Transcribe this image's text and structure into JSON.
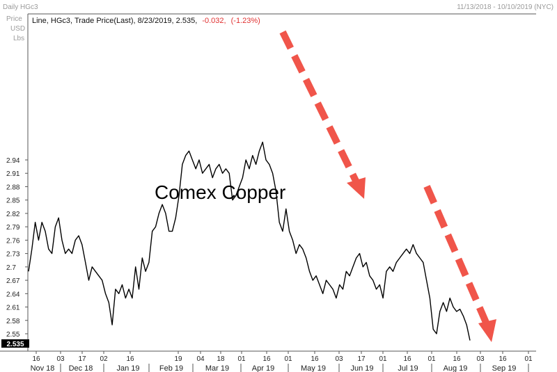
{
  "header": {
    "series_name": "Daily HGc3",
    "date_range": "11/13/2018 - 10/10/2019 (NYC)",
    "ylabel_lines": [
      "Price",
      "USD",
      "Lbs"
    ]
  },
  "legend": {
    "text": "Line, HGc3, Trade Price(Last), 8/23/2019, 2.535,",
    "change": "-0.032,",
    "change_pct": "(-1.23%)"
  },
  "last_price_label": "2.535",
  "annotation": "Comex Copper",
  "colors": {
    "line": "#000000",
    "arrow": "#f0554a",
    "price_tag_bg": "#000000",
    "price_tag_text": "#ffffff"
  },
  "chart_data": {
    "type": "line",
    "ylim": [
      2.52,
      2.98
    ],
    "yticks": [
      "2.55",
      "2.58",
      "2.61",
      "2.64",
      "2.67",
      "2.7",
      "2.73",
      "2.76",
      "2.79",
      "2.82",
      "2.85",
      "2.88",
      "2.91",
      "2.94"
    ],
    "day_ticks": [
      "16",
      "03",
      "17",
      "02",
      "16",
      "19",
      "04",
      "18",
      "01",
      "16",
      "01",
      "16",
      "03",
      "17",
      "01",
      "16",
      "01",
      "16",
      "03",
      "16",
      "01"
    ],
    "month_labels": [
      "Nov 18",
      "Dec 18",
      "Jan 19",
      "Feb 19",
      "Mar 19",
      "Apr 19",
      "May 19",
      "Jun 19",
      "Jul 19",
      "Aug 19",
      "Sep 19"
    ],
    "series": [
      {
        "values": [
          2.69,
          2.74,
          2.8,
          2.76,
          2.8,
          2.78,
          2.74,
          2.73,
          2.79,
          2.81,
          2.76,
          2.73,
          2.74,
          2.73,
          2.76,
          2.77,
          2.75,
          2.71,
          2.67,
          2.7,
          2.69,
          2.68,
          2.67,
          2.64,
          2.62,
          2.57,
          2.65,
          2.64,
          2.66,
          2.63,
          2.65,
          2.63,
          2.7,
          2.65,
          2.72,
          2.69,
          2.71,
          2.78,
          2.79,
          2.82,
          2.84,
          2.82,
          2.78,
          2.78,
          2.81,
          2.86,
          2.93,
          2.95,
          2.96,
          2.94,
          2.92,
          2.94,
          2.91,
          2.92,
          2.93,
          2.9,
          2.92,
          2.93,
          2.91,
          2.92,
          2.91,
          2.85,
          2.86,
          2.88,
          2.9,
          2.94,
          2.92,
          2.95,
          2.93,
          2.96,
          2.98,
          2.94,
          2.93,
          2.91,
          2.87,
          2.8,
          2.78,
          2.83,
          2.78,
          2.76,
          2.73,
          2.75,
          2.74,
          2.72,
          2.69,
          2.67,
          2.68,
          2.66,
          2.64,
          2.67,
          2.66,
          2.65,
          2.63,
          2.66,
          2.65,
          2.69,
          2.68,
          2.7,
          2.72,
          2.73,
          2.7,
          2.71,
          2.68,
          2.67,
          2.65,
          2.66,
          2.63,
          2.69,
          2.7,
          2.69,
          2.71,
          2.72,
          2.73,
          2.74,
          2.73,
          2.75,
          2.73,
          2.72,
          2.71,
          2.67,
          2.63,
          2.56,
          2.55,
          2.6,
          2.62,
          2.6,
          2.63,
          2.61,
          2.6,
          2.605,
          2.59,
          2.57,
          2.535
        ]
      }
    ]
  }
}
